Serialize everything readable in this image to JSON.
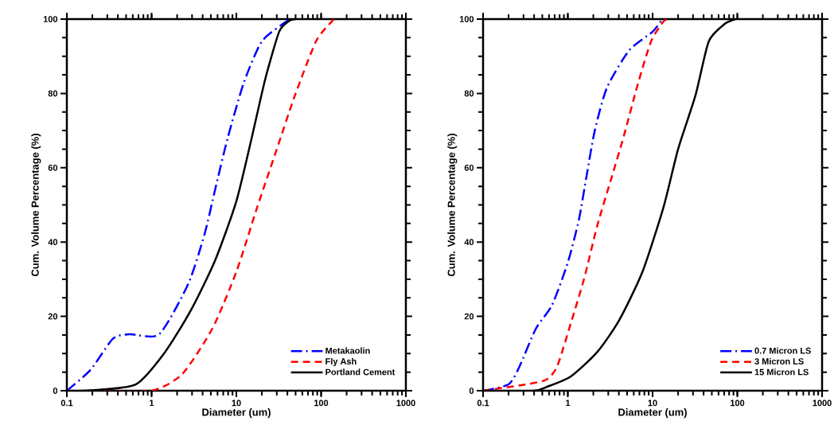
{
  "chart_data": [
    {
      "type": "line",
      "xlabel": "Diameter (um)",
      "ylabel": "Cum. Volume Percentage (%)",
      "log": "x",
      "xlim": [
        0.1,
        1000
      ],
      "ylim": [
        0,
        100
      ],
      "xticks": [
        0.1,
        1,
        10,
        100,
        1000
      ],
      "yticks": [
        0,
        20,
        40,
        60,
        80,
        100
      ],
      "grid": false,
      "legend": "bottom right",
      "series": [
        {
          "name": "Metakaolin",
          "color": "#0000ff",
          "line_style": "dashdot",
          "x": [
            0.1,
            0.19,
            0.35,
            0.55,
            1.23,
            2.7,
            4.2,
            5.6,
            7.9,
            12.3,
            20,
            39,
            45
          ],
          "values": [
            0,
            5.6,
            14,
            15.2,
            15.2,
            28.7,
            42,
            54,
            68,
            83,
            94,
            99.4,
            100
          ]
        },
        {
          "name": "Fly Ash",
          "color": "#ff0000",
          "line_style": "dashed",
          "x": [
            0.2,
            1.0,
            2.3,
            5.2,
            10,
            17.4,
            29.5,
            49,
            87,
            134,
            150
          ],
          "values": [
            0,
            0,
            4.5,
            16.7,
            32,
            49,
            64.5,
            79.4,
            94,
            99.4,
            100
          ]
        },
        {
          "name": "Portland Cement",
          "color": "#000000",
          "line_style": "solid",
          "x": [
            0.1,
            0.19,
            0.65,
            1.43,
            2.9,
            5.6,
            10,
            15.4,
            22,
            32,
            42,
            50
          ],
          "values": [
            0,
            0.1,
            1.7,
            10.3,
            21.6,
            35,
            51,
            68.7,
            84,
            96.6,
            99.5,
            100
          ]
        }
      ]
    },
    {
      "type": "line",
      "xlabel": "Diameter (um)",
      "ylabel": "Cum. Volume Percentage (%)",
      "log": "x",
      "xlim": [
        0.1,
        1000
      ],
      "ylim": [
        0,
        100
      ],
      "xticks": [
        0.1,
        1,
        10,
        100,
        1000
      ],
      "yticks": [
        0,
        20,
        40,
        60,
        80,
        100
      ],
      "grid": false,
      "legend": "bottom right",
      "series": [
        {
          "name": "0.7 Micron LS",
          "color": "#0000ff",
          "line_style": "dashdot",
          "x": [
            0.1,
            0.2,
            0.27,
            0.42,
            0.65,
            1.0,
            1.35,
            1.67,
            2.08,
            2.9,
            5.3,
            10,
            13
          ],
          "values": [
            0,
            1.7,
            6.6,
            16.7,
            23,
            34.5,
            46,
            58,
            70,
            81.6,
            91.6,
            96.6,
            100
          ]
        },
        {
          "name": "3 Micron LS",
          "color": "#ff0000",
          "line_style": "dashed",
          "x": [
            0.1,
            0.32,
            0.56,
            0.75,
            1.08,
            1.55,
            2.23,
            3.2,
            4.6,
            6.6,
            9.6,
            13.5,
            16
          ],
          "values": [
            0,
            1.7,
            3,
            6.6,
            18,
            30,
            44.5,
            56.5,
            68.7,
            82,
            94,
            99.4,
            100
          ]
        },
        {
          "name": "15 Micron LS",
          "color": "#000000",
          "line_style": "solid",
          "x": [
            0.1,
            0.4,
            0.56,
            1.08,
            2.2,
            4.0,
            7.6,
            13.5,
            20,
            32,
            46,
            71,
            95
          ],
          "values": [
            0,
            0,
            1,
            3.8,
            10.3,
            18.8,
            32,
            49.5,
            65,
            79.4,
            94,
            98.7,
            100
          ]
        }
      ]
    }
  ]
}
